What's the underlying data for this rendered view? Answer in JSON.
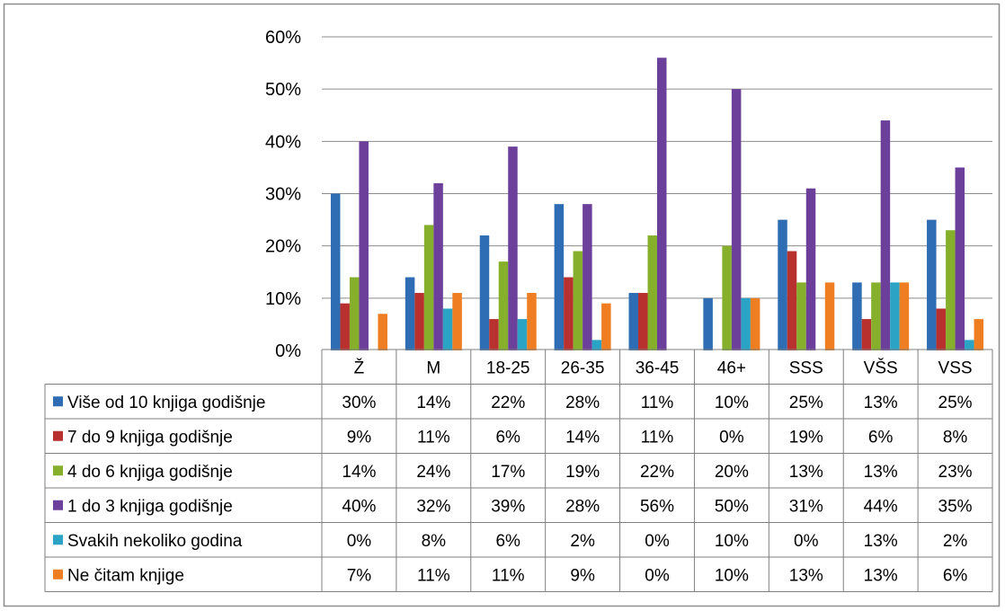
{
  "chart_data": {
    "type": "bar",
    "categories": [
      "Ž",
      "M",
      "18-25",
      "26-35",
      "36-45",
      "46+",
      "SSS",
      "VŠS",
      "VSS"
    ],
    "series": [
      {
        "name": "Više od 10 knjiga godišnje",
        "color": "#2e6db3",
        "values": [
          30,
          14,
          22,
          28,
          11,
          10,
          25,
          13,
          25
        ],
        "labels": [
          "30%",
          "14%",
          "22%",
          "28%",
          "11%",
          "10%",
          "25%",
          "13%",
          "25%"
        ]
      },
      {
        "name": "7 do 9 knjiga godišnje",
        "color": "#b8312f",
        "values": [
          9,
          11,
          6,
          14,
          11,
          0,
          19,
          6,
          8
        ],
        "labels": [
          "9%",
          "11%",
          "6%",
          "14%",
          "11%",
          "0%",
          "19%",
          "6%",
          "8%"
        ]
      },
      {
        "name": "4 do 6 knjiga godišnje",
        "color": "#86b02b",
        "values": [
          14,
          24,
          17,
          19,
          22,
          20,
          13,
          13,
          23
        ],
        "labels": [
          "14%",
          "24%",
          "17%",
          "19%",
          "22%",
          "20%",
          "13%",
          "13%",
          "23%"
        ]
      },
      {
        "name": "1 do 3 knjiga godišnje",
        "color": "#6b3f9a",
        "values": [
          40,
          32,
          39,
          28,
          56,
          50,
          31,
          44,
          35
        ],
        "labels": [
          "40%",
          "32%",
          "39%",
          "28%",
          "56%",
          "50%",
          "31%",
          "44%",
          "35%"
        ]
      },
      {
        "name": "Svakih nekoliko godina",
        "color": "#2aa3c4",
        "values": [
          0,
          8,
          6,
          2,
          0,
          10,
          0,
          13,
          2
        ],
        "labels": [
          "0%",
          "8%",
          "6%",
          "2%",
          "0%",
          "10%",
          "0%",
          "13%",
          "2%"
        ]
      },
      {
        "name": "Ne čitam knjige",
        "color": "#ef7e22",
        "values": [
          7,
          11,
          11,
          9,
          0,
          10,
          13,
          13,
          6
        ],
        "labels": [
          "7%",
          "11%",
          "11%",
          "9%",
          "0%",
          "10%",
          "13%",
          "13%",
          "6%"
        ]
      }
    ],
    "y_ticks": [
      "0%",
      "10%",
      "20%",
      "30%",
      "40%",
      "50%",
      "60%"
    ],
    "ylim": [
      0,
      60
    ],
    "grid": true,
    "legend": "data-table"
  }
}
